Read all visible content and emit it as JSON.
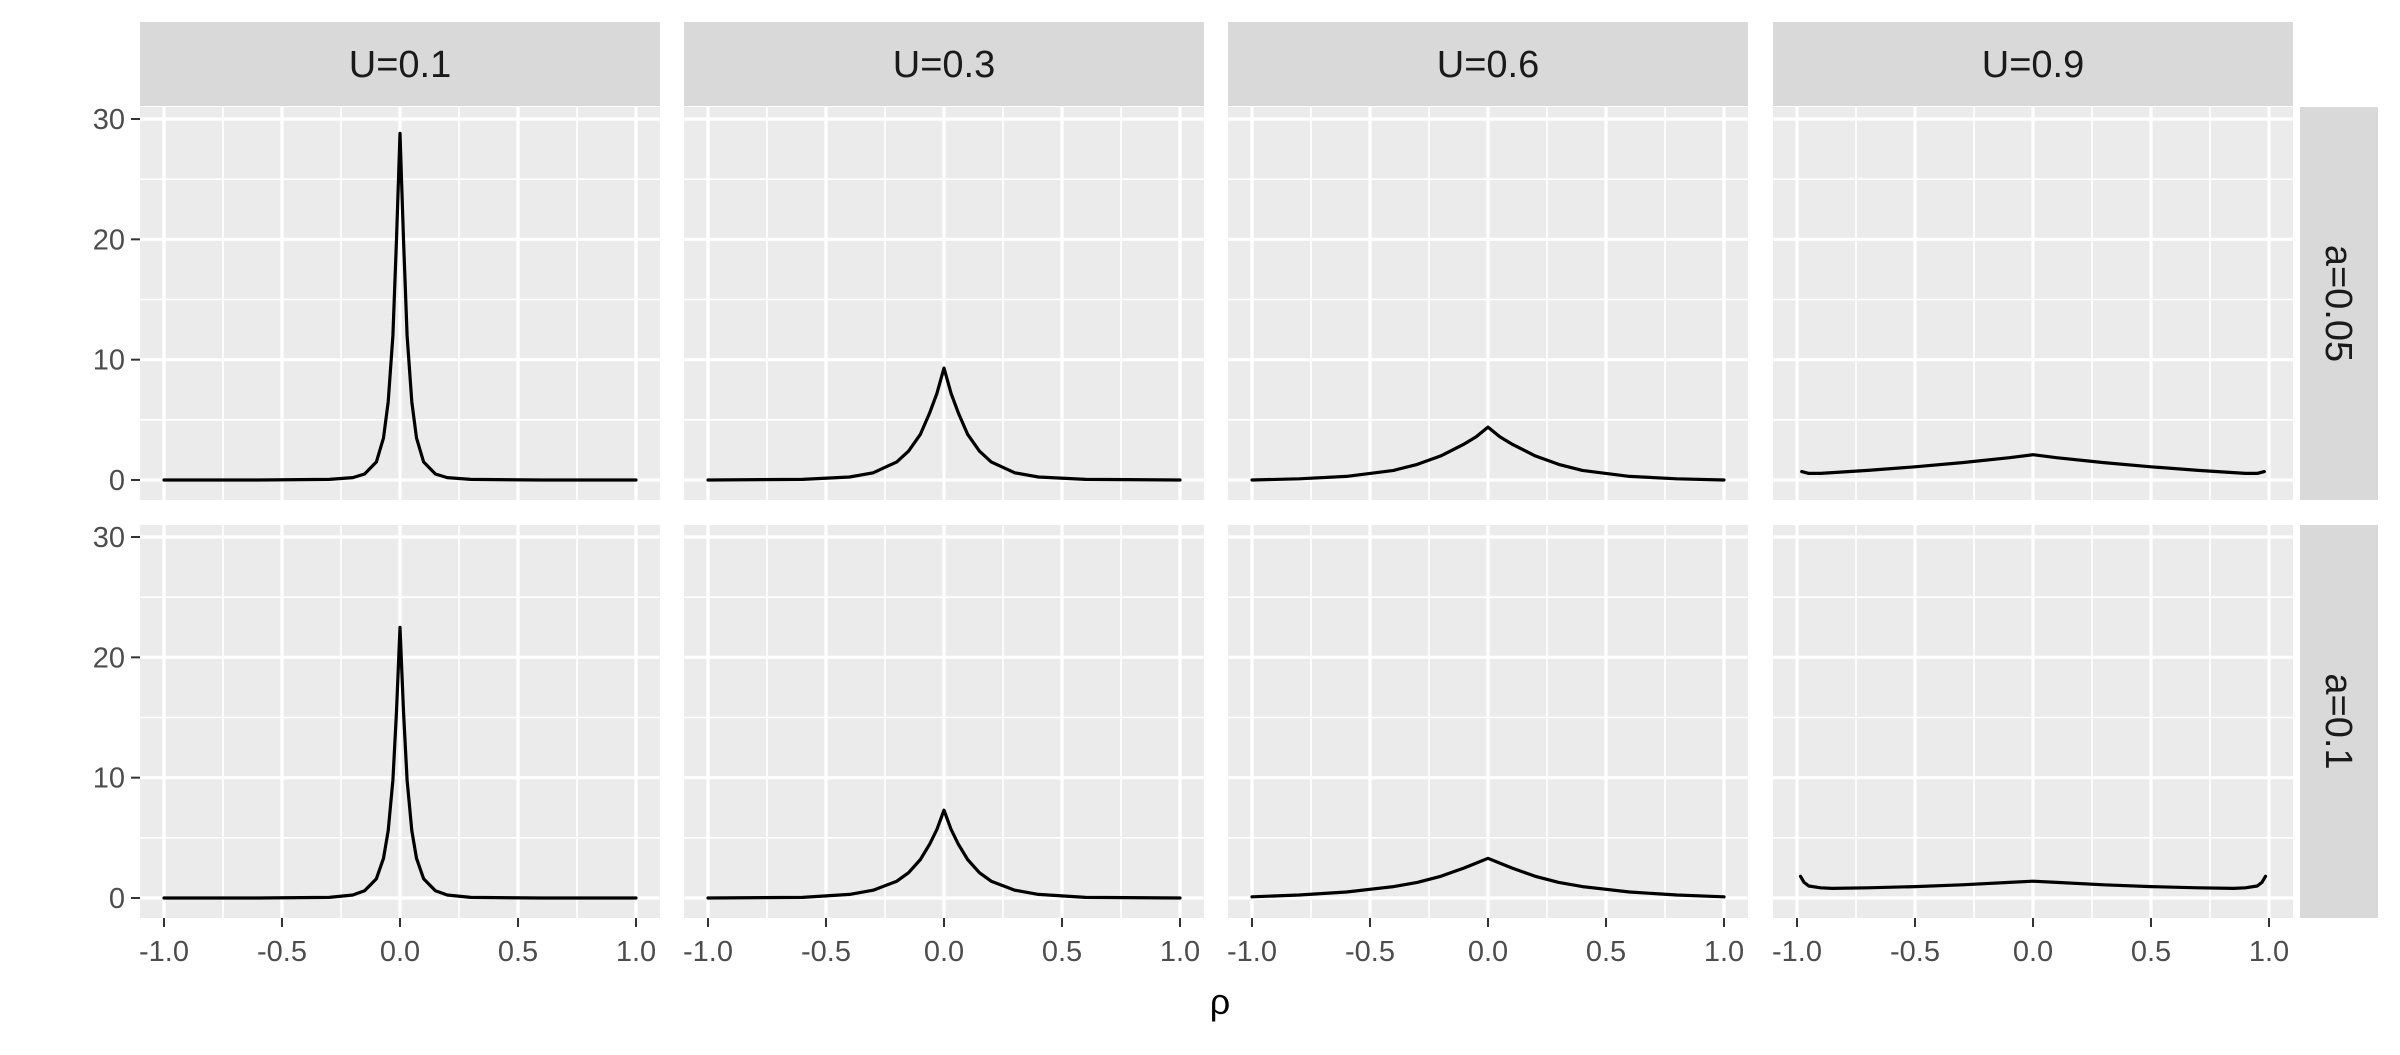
{
  "chart_data": {
    "type": "line",
    "layout": "facet_grid",
    "xlabel": "ρ",
    "ylabel": "",
    "xlim": [
      -1.0,
      1.0
    ],
    "ylim": [
      0,
      30
    ],
    "xticks": [
      -1.0,
      -0.5,
      0.0,
      0.5,
      1.0
    ],
    "xtick_labels": [
      "-1.0",
      "-0.5",
      "0.0",
      "0.5",
      "1.0"
    ],
    "yticks": [
      0,
      10,
      20,
      30
    ],
    "ytick_labels": [
      "0",
      "10",
      "20",
      "30"
    ],
    "grid": true,
    "column_strips": [
      "U=0.1",
      "U=0.3",
      "U=0.6",
      "U=0.9"
    ],
    "row_strips": [
      "a=0.05",
      "a=0.1"
    ],
    "line_color": "#000000",
    "panel_background": "#ebebeb",
    "strip_background": "#d9d9d9",
    "panels": [
      {
        "row": "a=0.05",
        "col": "U=0.1",
        "x": [
          -1.0,
          -0.6,
          -0.3,
          -0.2,
          -0.15,
          -0.1,
          -0.07,
          -0.05,
          -0.03,
          -0.015,
          0.0,
          0.015,
          0.03,
          0.05,
          0.07,
          0.1,
          0.15,
          0.2,
          0.3,
          0.6,
          1.0
        ],
        "y": [
          0.0,
          0.0,
          0.05,
          0.2,
          0.5,
          1.5,
          3.5,
          6.5,
          12.0,
          20.0,
          28.8,
          20.0,
          12.0,
          6.5,
          3.5,
          1.5,
          0.5,
          0.2,
          0.05,
          0.0,
          0.0
        ]
      },
      {
        "row": "a=0.05",
        "col": "U=0.3",
        "x": [
          -1.0,
          -0.6,
          -0.4,
          -0.3,
          -0.2,
          -0.15,
          -0.1,
          -0.06,
          -0.03,
          0.0,
          0.03,
          0.06,
          0.1,
          0.15,
          0.2,
          0.3,
          0.4,
          0.6,
          1.0
        ],
        "y": [
          0.0,
          0.05,
          0.25,
          0.6,
          1.5,
          2.4,
          3.8,
          5.6,
          7.2,
          9.3,
          7.2,
          5.6,
          3.8,
          2.4,
          1.5,
          0.6,
          0.25,
          0.05,
          0.0
        ]
      },
      {
        "row": "a=0.05",
        "col": "U=0.6",
        "x": [
          -1.0,
          -0.8,
          -0.6,
          -0.4,
          -0.3,
          -0.2,
          -0.1,
          -0.05,
          0.0,
          0.05,
          0.1,
          0.2,
          0.3,
          0.4,
          0.6,
          0.8,
          1.0
        ],
        "y": [
          0.0,
          0.1,
          0.3,
          0.8,
          1.3,
          2.0,
          3.0,
          3.6,
          4.4,
          3.6,
          3.0,
          2.0,
          1.3,
          0.8,
          0.3,
          0.1,
          0.0
        ]
      },
      {
        "row": "a=0.05",
        "col": "U=0.9",
        "x": [
          -0.98,
          -0.95,
          -0.9,
          -0.7,
          -0.5,
          -0.3,
          -0.1,
          0.0,
          0.1,
          0.3,
          0.5,
          0.7,
          0.9,
          0.95,
          0.98
        ],
        "y": [
          0.7,
          0.55,
          0.55,
          0.8,
          1.1,
          1.45,
          1.85,
          2.1,
          1.85,
          1.45,
          1.1,
          0.8,
          0.55,
          0.55,
          0.7
        ]
      },
      {
        "row": "a=0.1",
        "col": "U=0.1",
        "x": [
          -1.0,
          -0.6,
          -0.3,
          -0.2,
          -0.15,
          -0.1,
          -0.07,
          -0.05,
          -0.03,
          -0.015,
          0.0,
          0.015,
          0.03,
          0.05,
          0.07,
          0.1,
          0.15,
          0.2,
          0.3,
          0.6,
          1.0
        ],
        "y": [
          0.0,
          0.0,
          0.05,
          0.25,
          0.6,
          1.6,
          3.3,
          5.6,
          9.8,
          15.5,
          22.5,
          15.5,
          9.8,
          5.6,
          3.3,
          1.6,
          0.6,
          0.25,
          0.05,
          0.0,
          0.0
        ]
      },
      {
        "row": "a=0.1",
        "col": "U=0.3",
        "x": [
          -1.0,
          -0.6,
          -0.4,
          -0.3,
          -0.2,
          -0.15,
          -0.1,
          -0.06,
          -0.03,
          0.0,
          0.03,
          0.06,
          0.1,
          0.15,
          0.2,
          0.3,
          0.4,
          0.6,
          1.0
        ],
        "y": [
          0.0,
          0.05,
          0.3,
          0.65,
          1.4,
          2.1,
          3.2,
          4.5,
          5.7,
          7.3,
          5.7,
          4.5,
          3.2,
          2.1,
          1.4,
          0.65,
          0.3,
          0.05,
          0.0
        ]
      },
      {
        "row": "a=0.1",
        "col": "U=0.6",
        "x": [
          -1.0,
          -0.8,
          -0.6,
          -0.4,
          -0.3,
          -0.2,
          -0.1,
          -0.05,
          0.0,
          0.05,
          0.1,
          0.2,
          0.3,
          0.4,
          0.6,
          0.8,
          1.0
        ],
        "y": [
          0.1,
          0.25,
          0.5,
          0.95,
          1.3,
          1.8,
          2.5,
          2.9,
          3.3,
          2.9,
          2.5,
          1.8,
          1.3,
          0.95,
          0.5,
          0.25,
          0.1
        ]
      },
      {
        "row": "a=0.1",
        "col": "U=0.9",
        "x": [
          -0.985,
          -0.97,
          -0.95,
          -0.9,
          -0.85,
          -0.7,
          -0.5,
          -0.3,
          -0.1,
          0.0,
          0.1,
          0.3,
          0.5,
          0.7,
          0.85,
          0.9,
          0.95,
          0.97,
          0.985
        ],
        "y": [
          1.8,
          1.3,
          1.0,
          0.85,
          0.8,
          0.85,
          0.95,
          1.1,
          1.3,
          1.4,
          1.3,
          1.1,
          0.95,
          0.85,
          0.8,
          0.85,
          1.0,
          1.3,
          1.8
        ]
      }
    ]
  }
}
